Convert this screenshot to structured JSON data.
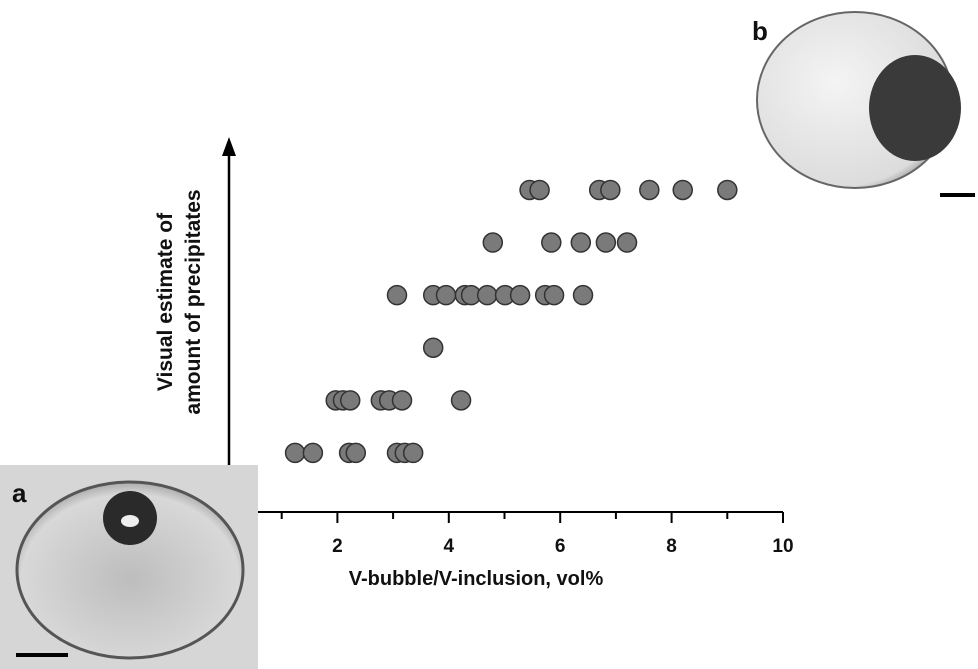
{
  "chart_data": {
    "type": "scatter",
    "xlabel": "V-bubble/V-inclusion, vol%",
    "ylabel": [
      "Visual estimate of",
      "amount  of precipitates"
    ],
    "panel_labels": [
      "a",
      "b"
    ],
    "xlim": [
      0,
      10
    ],
    "xticks": [
      2,
      4,
      6,
      8,
      10
    ],
    "minor_xticks": [
      1,
      3,
      5,
      7,
      9
    ],
    "ylim": [
      0.77,
      6.95
    ],
    "color": "#7a7a7a",
    "x": [
      1.24,
      1.56,
      2.21,
      2.33,
      3.07,
      3.21,
      3.36,
      1.97,
      2.1,
      2.23,
      2.78,
      2.93,
      3.16,
      4.22,
      3.72,
      3.07,
      3.72,
      3.95,
      4.29,
      4.4,
      4.69,
      5.01,
      5.28,
      5.73,
      5.89,
      6.41,
      4.79,
      5.84,
      6.37,
      6.82,
      7.2,
      5.45,
      5.63,
      6.7,
      6.9,
      7.6,
      8.2,
      9.0
    ],
    "y": [
      1,
      1,
      1,
      1,
      1,
      1,
      1,
      2,
      2,
      2,
      2,
      2,
      2,
      2,
      3,
      4,
      4,
      4,
      4,
      4,
      4,
      4,
      4,
      4,
      4,
      4,
      5,
      5,
      5,
      5,
      5,
      6,
      6,
      6,
      6,
      6,
      6,
      6
    ]
  }
}
